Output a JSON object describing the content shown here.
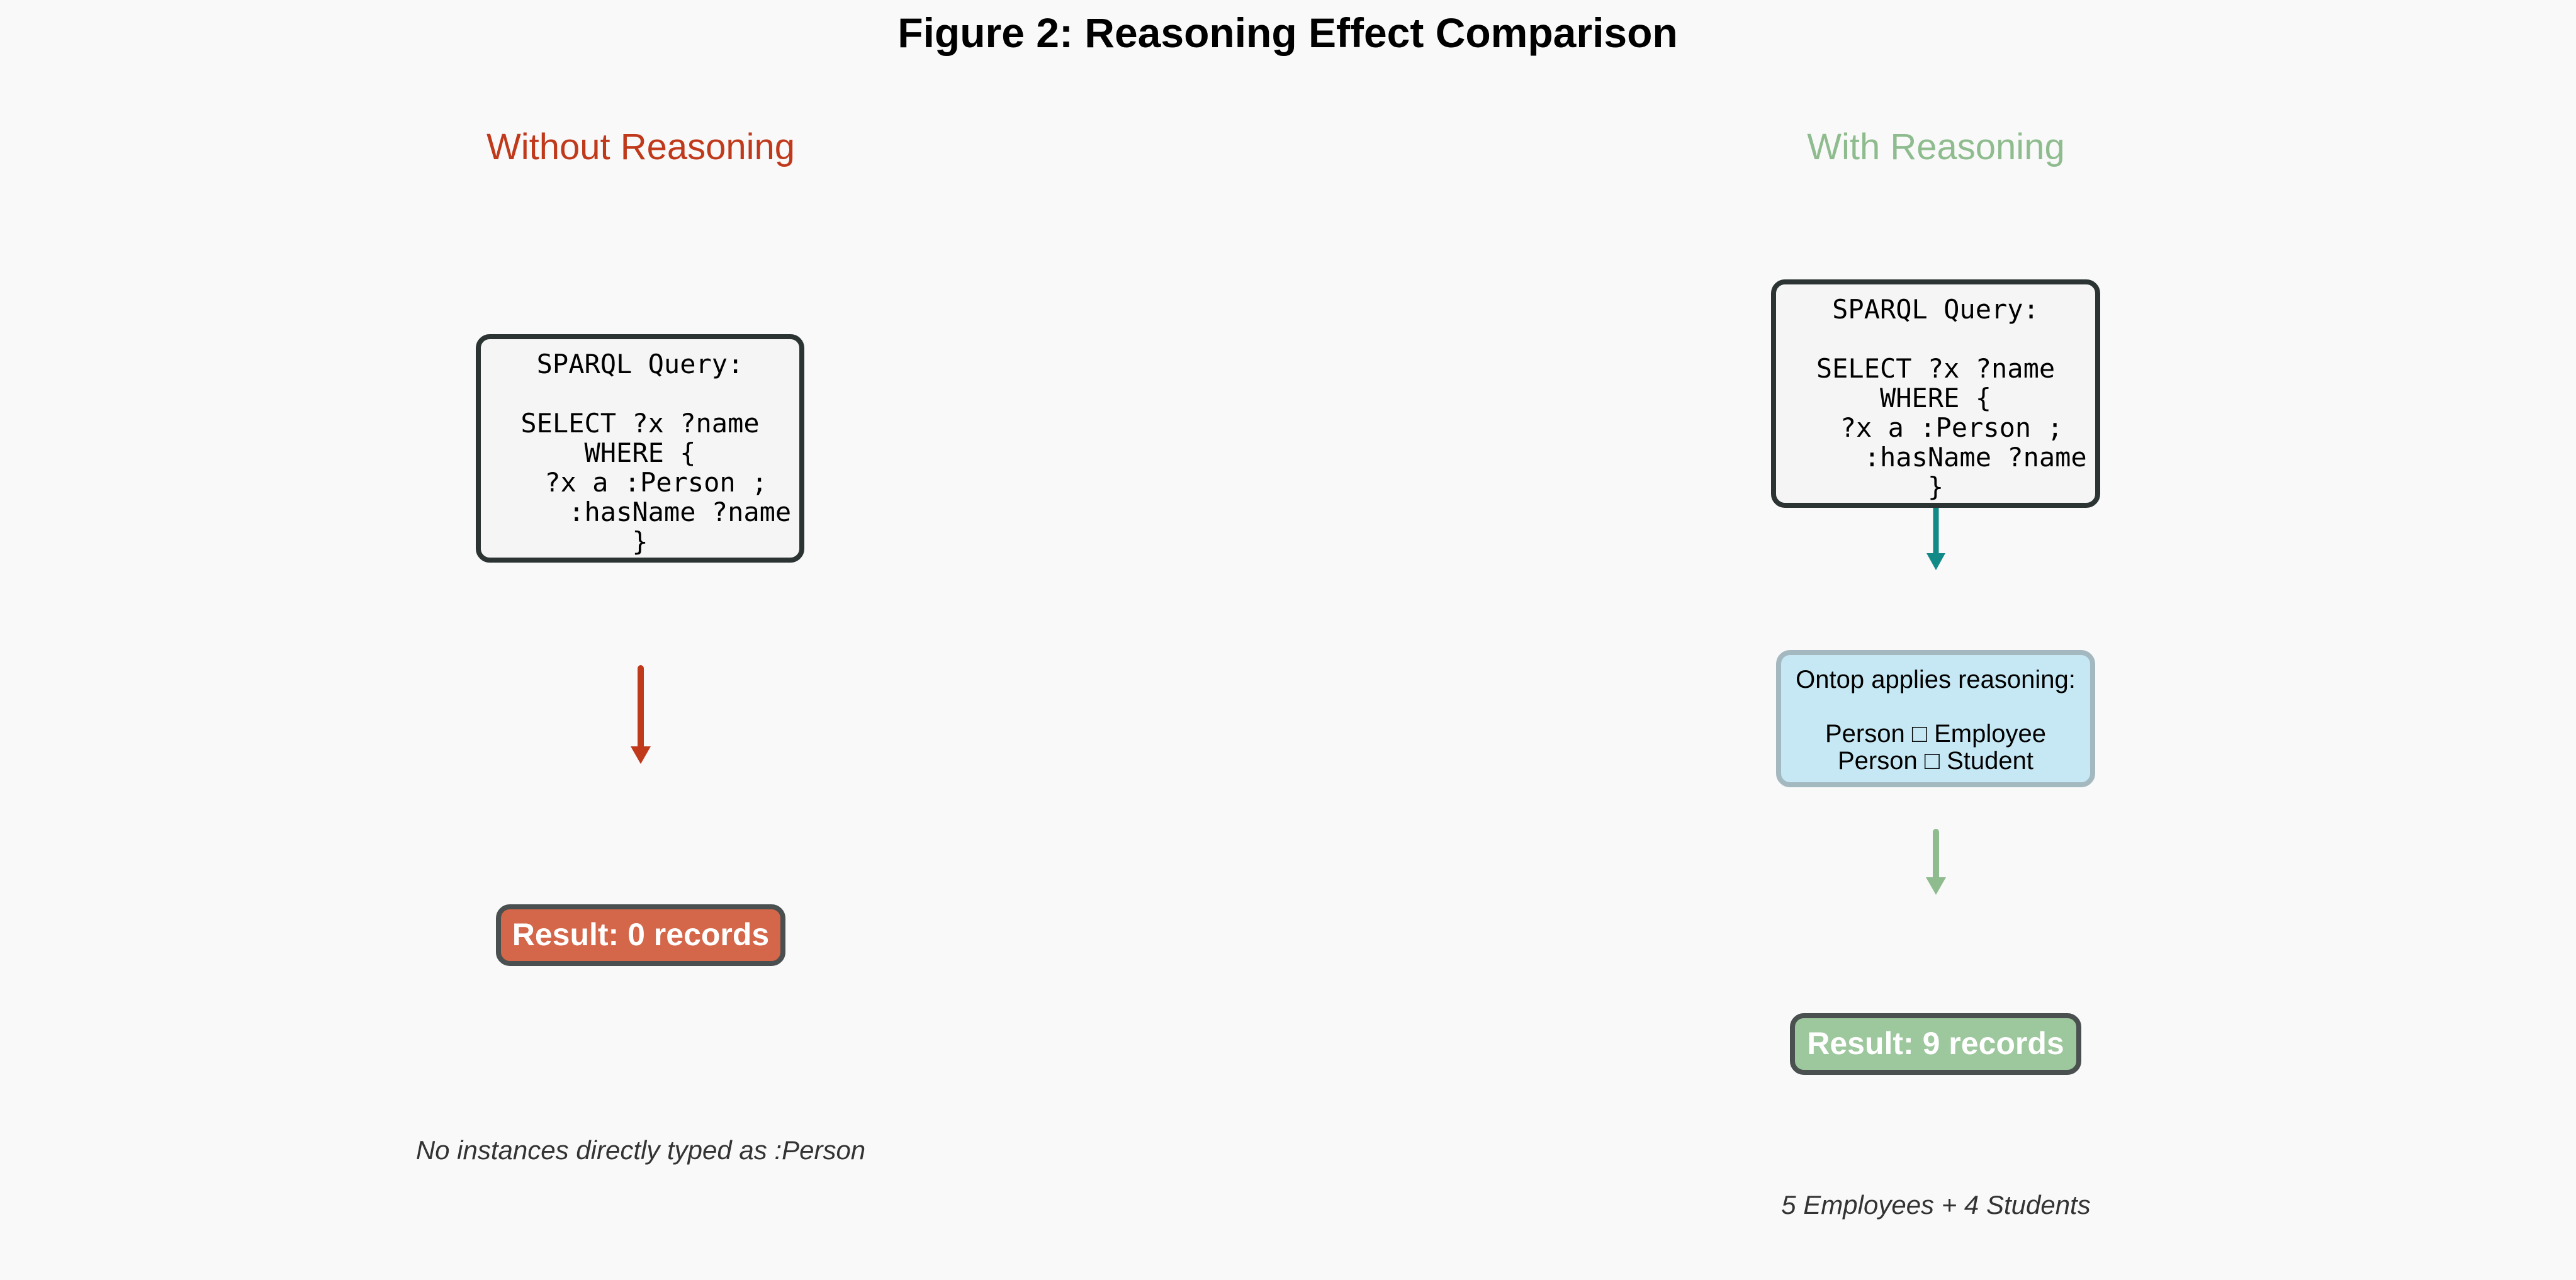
{
  "figure": {
    "title": "Figure 2: Reasoning Effect Comparison"
  },
  "left_panel": {
    "title": "Without Reasoning",
    "query": "SPARQL Query:\n\nSELECT ?x ?name\nWHERE {\n  ?x a :Person ;\n     :hasName ?name\n}",
    "result": "Result: 0 records",
    "note": "No instances directly typed as :Person"
  },
  "right_panel": {
    "title": "With Reasoning",
    "query": "SPARQL Query:\n\nSELECT ?x ?name\nWHERE {\n  ?x a :Person ;\n     :hasName ?name\n}",
    "reasoning": "Ontop applies reasoning:\n\nPerson □ Employee\nPerson □ Student",
    "result": "Result: 9 records",
    "note": "5 Employees + 4 Students"
  },
  "colors": {
    "without_reasoning": "#c0391b",
    "with_reasoning": "#8fbc8f",
    "query_arrow": "#128a87",
    "result_fail": "#d4664a",
    "result_success": "#9dc79d",
    "reasoning_box": "#c6e8f4"
  }
}
